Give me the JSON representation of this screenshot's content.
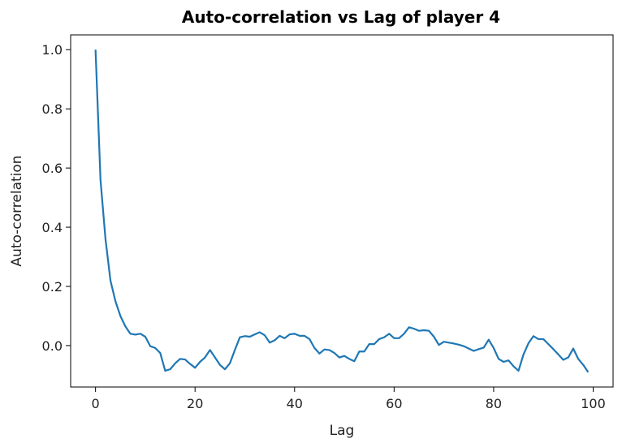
{
  "chart_data": {
    "type": "line",
    "title": "Auto-correlation vs Lag of player 4",
    "xlabel": "Lag",
    "ylabel": "Auto-correlation",
    "xlim": [
      -5,
      104
    ],
    "ylim": [
      -0.14,
      1.05
    ],
    "xticks": [
      0,
      20,
      40,
      60,
      80,
      100
    ],
    "xtick_labels": [
      "0",
      "20",
      "40",
      "60",
      "80",
      "100"
    ],
    "yticks": [
      0.0,
      0.2,
      0.4,
      0.6,
      0.8,
      1.0
    ],
    "ytick_labels": [
      "0.0",
      "0.2",
      "0.4",
      "0.6",
      "0.8",
      "1.0"
    ],
    "grid": false,
    "line_color": "#1f77b4",
    "series": [
      {
        "x": [
          0,
          1,
          2,
          3,
          4,
          5,
          6,
          7,
          8,
          9,
          10,
          11,
          12,
          13,
          14,
          15,
          16,
          17,
          18,
          19,
          20,
          21,
          22,
          23,
          24,
          25,
          26,
          27,
          28,
          29,
          30,
          31,
          32,
          33,
          34,
          35,
          36,
          37,
          38,
          39,
          40,
          41,
          42,
          43,
          44,
          45,
          46,
          47,
          48,
          49,
          50,
          51,
          52,
          53,
          54,
          55,
          56,
          57,
          58,
          59,
          60,
          61,
          62,
          63,
          64,
          65,
          66,
          67,
          68,
          69,
          70,
          71,
          72,
          73,
          74,
          75,
          76,
          77,
          78,
          79,
          80,
          81,
          82,
          83,
          84,
          85,
          86,
          87,
          88,
          89,
          90,
          91,
          92,
          93,
          94,
          95,
          96,
          97,
          98,
          99
        ],
        "values": [
          1.0,
          0.56,
          0.36,
          0.22,
          0.15,
          0.1,
          0.065,
          0.04,
          0.037,
          0.04,
          0.03,
          -0.002,
          -0.008,
          -0.025,
          -0.085,
          -0.08,
          -0.06,
          -0.045,
          -0.047,
          -0.062,
          -0.075,
          -0.055,
          -0.04,
          -0.015,
          -0.04,
          -0.065,
          -0.08,
          -0.06,
          -0.015,
          0.028,
          0.032,
          0.03,
          0.038,
          0.045,
          0.035,
          0.01,
          0.018,
          0.033,
          0.025,
          0.038,
          0.04,
          0.033,
          0.033,
          0.022,
          -0.008,
          -0.027,
          -0.013,
          -0.015,
          -0.025,
          -0.04,
          -0.035,
          -0.045,
          -0.053,
          -0.02,
          -0.02,
          0.005,
          0.005,
          0.022,
          0.028,
          0.04,
          0.025,
          0.025,
          0.04,
          0.062,
          0.057,
          0.05,
          0.052,
          0.05,
          0.03,
          0.002,
          0.013,
          0.01,
          0.007,
          0.003,
          -0.002,
          -0.01,
          -0.018,
          -0.012,
          -0.007,
          0.02,
          -0.008,
          -0.045,
          -0.055,
          -0.05,
          -0.07,
          -0.085,
          -0.03,
          0.008,
          0.032,
          0.022,
          0.022,
          0.005,
          -0.012,
          -0.03,
          -0.048,
          -0.04,
          -0.01,
          -0.045,
          -0.065,
          -0.09
        ]
      }
    ]
  }
}
